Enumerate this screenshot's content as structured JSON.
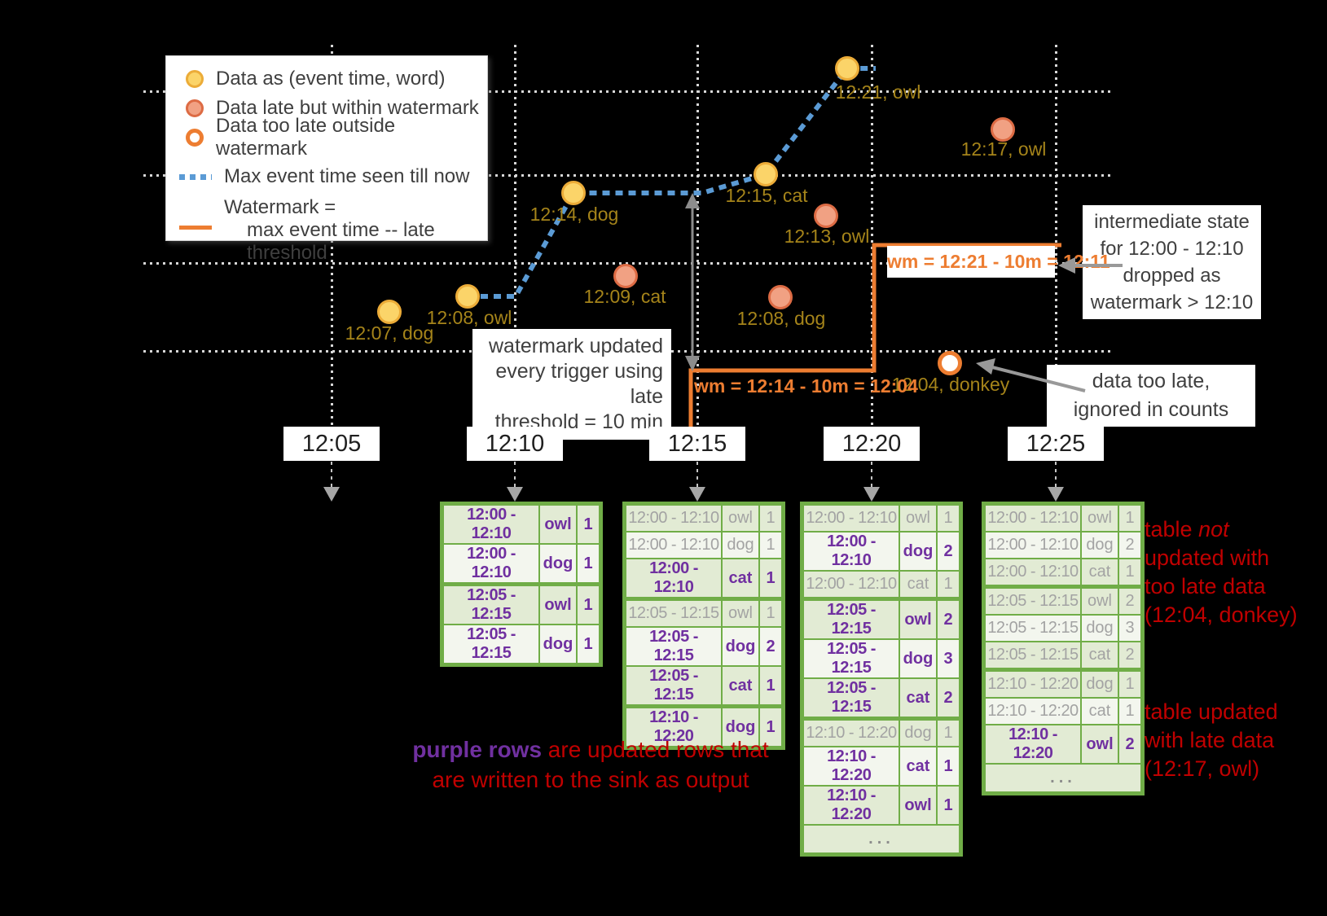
{
  "legend": {
    "items": [
      {
        "icon": "ontime-dot",
        "label": "Data as (event time, word)"
      },
      {
        "icon": "late-dot",
        "label": "Data late but within watermark"
      },
      {
        "icon": "toolate-dot",
        "label": "Data too late outside watermark"
      }
    ],
    "max_event_label": "Max event time seen till now",
    "watermark_label": "Watermark =",
    "watermark_label2": "max event time -- late threshold"
  },
  "points": [
    {
      "event_time": "12:07",
      "word": "dog",
      "status": "on-time",
      "label": "12:07, dog"
    },
    {
      "event_time": "12:08",
      "word": "owl",
      "status": "on-time",
      "label": "12:08, owl"
    },
    {
      "event_time": "12:14",
      "word": "dog",
      "status": "on-time",
      "label": "12:14, dog"
    },
    {
      "event_time": "12:09",
      "word": "cat",
      "status": "late",
      "label": "12:09, cat"
    },
    {
      "event_time": "12:15",
      "word": "cat",
      "status": "on-time",
      "label": "12:15, cat"
    },
    {
      "event_time": "12:13",
      "word": "owl",
      "status": "late",
      "label": "12:13, owl"
    },
    {
      "event_time": "12:08",
      "word": "dog",
      "status": "late",
      "label": "12:08, dog"
    },
    {
      "event_time": "12:21",
      "word": "owl",
      "status": "on-time",
      "label": "12:21, owl"
    },
    {
      "event_time": "12:17",
      "word": "owl",
      "status": "late",
      "label": "12:17, owl"
    },
    {
      "event_time": "12:04",
      "word": "donkey",
      "status": "too-late",
      "label": "12:04, donkey"
    }
  ],
  "watermarks": {
    "at_12_15": "wm = 12:14 - 10m = 12:04",
    "at_12_25": "wm = 12:21 - 10m = 12:11"
  },
  "callouts": {
    "trigger_update": "watermark updated\nevery trigger using late\nthreshold = 10 min",
    "state_dropped": "intermediate state\nfor 12:00 - 12:10\ndropped as\nwatermark > 12:10",
    "too_late": "data too late,\nignored in counts"
  },
  "axis": {
    "ticks": [
      "12:05",
      "12:10",
      "12:15",
      "12:20",
      "12:25"
    ]
  },
  "tables": [
    {
      "trigger": "12:10",
      "ellipsis": null,
      "rows": [
        {
          "window": "12:00 - 12:10",
          "word": "owl",
          "count": "1",
          "updated": true
        },
        {
          "window": "12:00 - 12:10",
          "word": "dog",
          "count": "1",
          "updated": true
        },
        {
          "window": "12:05 - 12:15",
          "word": "owl",
          "count": "1",
          "updated": true
        },
        {
          "window": "12:05 - 12:15",
          "word": "dog",
          "count": "1",
          "updated": true
        }
      ]
    },
    {
      "trigger": "12:15",
      "ellipsis": null,
      "rows": [
        {
          "window": "12:00 - 12:10",
          "word": "owl",
          "count": "1",
          "updated": false
        },
        {
          "window": "12:00 - 12:10",
          "word": "dog",
          "count": "1",
          "updated": false
        },
        {
          "window": "12:00 - 12:10",
          "word": "cat",
          "count": "1",
          "updated": true
        },
        {
          "window": "12:05 - 12:15",
          "word": "owl",
          "count": "1",
          "updated": false
        },
        {
          "window": "12:05 - 12:15",
          "word": "dog",
          "count": "2",
          "updated": true
        },
        {
          "window": "12:05 - 12:15",
          "word": "cat",
          "count": "1",
          "updated": true
        },
        {
          "window": "12:10 - 12:20",
          "word": "dog",
          "count": "1",
          "updated": true
        }
      ]
    },
    {
      "trigger": "12:20",
      "ellipsis": "...",
      "rows": [
        {
          "window": "12:00 - 12:10",
          "word": "owl",
          "count": "1",
          "updated": false
        },
        {
          "window": "12:00 - 12:10",
          "word": "dog",
          "count": "2",
          "updated": true
        },
        {
          "window": "12:00 - 12:10",
          "word": "cat",
          "count": "1",
          "updated": false
        },
        {
          "window": "12:05 - 12:15",
          "word": "owl",
          "count": "2",
          "updated": true
        },
        {
          "window": "12:05 - 12:15",
          "word": "dog",
          "count": "3",
          "updated": true
        },
        {
          "window": "12:05 - 12:15",
          "word": "cat",
          "count": "2",
          "updated": true
        },
        {
          "window": "12:10 - 12:20",
          "word": "dog",
          "count": "1",
          "updated": false
        },
        {
          "window": "12:10 - 12:20",
          "word": "cat",
          "count": "1",
          "updated": true
        },
        {
          "window": "12:10 - 12:20",
          "word": "owl",
          "count": "1",
          "updated": true
        }
      ]
    },
    {
      "trigger": "12:25",
      "ellipsis": "...",
      "rows": [
        {
          "window": "12:00 - 12:10",
          "word": "owl",
          "count": "1",
          "updated": false
        },
        {
          "window": "12:00 - 12:10",
          "word": "dog",
          "count": "2",
          "updated": false
        },
        {
          "window": "12:00 - 12:10",
          "word": "cat",
          "count": "1",
          "updated": false
        },
        {
          "window": "12:05 - 12:15",
          "word": "owl",
          "count": "2",
          "updated": false
        },
        {
          "window": "12:05 - 12:15",
          "word": "dog",
          "count": "3",
          "updated": false
        },
        {
          "window": "12:05 - 12:15",
          "word": "cat",
          "count": "2",
          "updated": false
        },
        {
          "window": "12:10 - 12:20",
          "word": "dog",
          "count": "1",
          "updated": false
        },
        {
          "window": "12:10 - 12:20",
          "word": "cat",
          "count": "1",
          "updated": false
        },
        {
          "window": "12:10 - 12:20",
          "word": "owl",
          "count": "2",
          "updated": true
        }
      ]
    }
  ],
  "annotations": {
    "not_updated": {
      "lead": "table ",
      "italic": "not",
      "rest": "updated with\ntoo late data\n(12:04, donkey)"
    },
    "updated": "table updated\nwith late data\n(12:17, owl)",
    "purple_note": {
      "highlight": "purple rows",
      "rest": " are updated rows that",
      "line2": "are written to the sink as output"
    }
  },
  "colors": {
    "max_event_blue": "#5B9BD5",
    "watermark_orange": "#ED7D31",
    "table_green": "#70AD47",
    "updated_purple": "#7030A0",
    "note_red": "#C00000",
    "point_label_gold": "#a5841a"
  }
}
